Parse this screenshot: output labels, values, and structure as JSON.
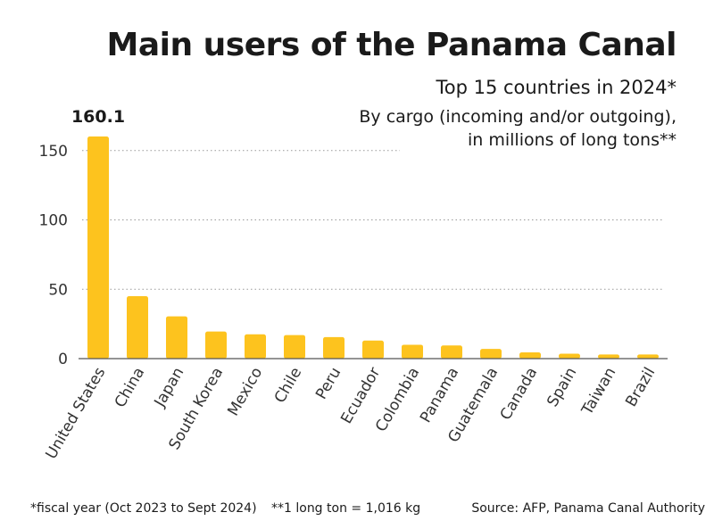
{
  "chart_data": {
    "type": "bar",
    "title": "Main users of the Panama Canal",
    "subtitle": "Top 15 countries in 2024*",
    "description_line1": "By cargo (incoming and/or outgoing),",
    "description_line2": "in millions of long tons**",
    "categories": [
      "United States",
      "China",
      "Japan",
      "South Korea",
      "Mexico",
      "Chile",
      "Peru",
      "Ecuador",
      "Colombia",
      "Panama",
      "Guatemala",
      "Canada",
      "Spain",
      "Taiwan",
      "Brazil"
    ],
    "values": [
      160.1,
      45,
      30.5,
      19.5,
      17.5,
      17,
      15.5,
      13,
      10,
      9.5,
      7,
      4.5,
      3.5,
      3,
      3
    ],
    "data_labels": [
      {
        "index": 0,
        "text": "160.1"
      }
    ],
    "yticks": [
      0,
      50,
      100,
      150
    ],
    "ylim": [
      0,
      165
    ],
    "xlabel": "",
    "ylabel": "",
    "grid": true,
    "bar_color": "#FDC31E",
    "axis_color": "#555555",
    "grid_color": "#999999"
  },
  "footer": {
    "note1": "*fiscal year (Oct 2023 to Sept 2024)",
    "note2": "**1 long ton = 1,016 kg",
    "source": "Source: AFP, Panama Canal Authority"
  }
}
